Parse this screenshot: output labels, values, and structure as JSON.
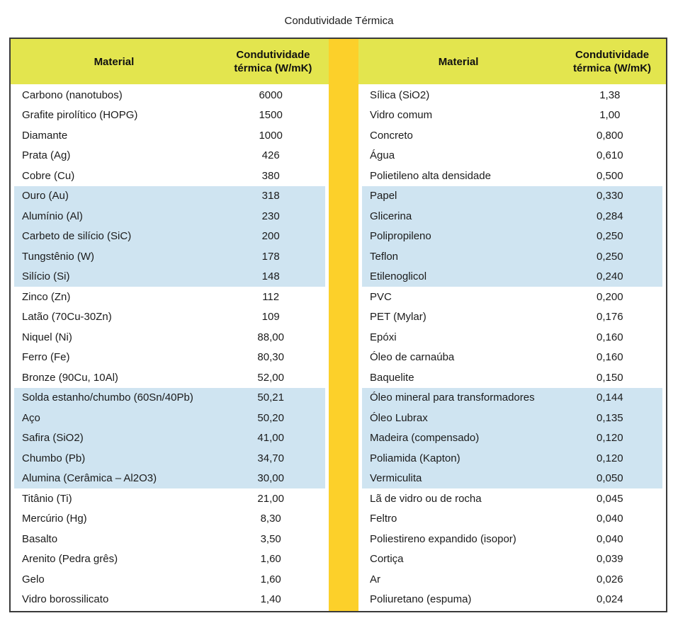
{
  "title": "Condutividade Térmica",
  "colors": {
    "header_bg": "#e3e54e",
    "divider": "#fcd02a",
    "highlight": "#cfe4f1",
    "border": "#3a3a3a"
  },
  "tables": [
    {
      "headers": {
        "material": "Material",
        "conductivity": "Condutividade térmica (W/mK)"
      },
      "rows": [
        {
          "material": "Carbono (nanotubos)",
          "value": "6000",
          "highlight": false
        },
        {
          "material": "Grafite pirolítico (HOPG)",
          "value": "1500",
          "highlight": false
        },
        {
          "material": "Diamante",
          "value": "1000",
          "highlight": false
        },
        {
          "material": "Prata (Ag)",
          "value": "426",
          "highlight": false
        },
        {
          "material": "Cobre (Cu)",
          "value": "380",
          "highlight": false
        },
        {
          "material": "Ouro (Au)",
          "value": "318",
          "highlight": true
        },
        {
          "material": "Alumínio (Al)",
          "value": "230",
          "highlight": true
        },
        {
          "material": "Carbeto de silício (SiC)",
          "value": "200",
          "highlight": true
        },
        {
          "material": "Tungstênio (W)",
          "value": "178",
          "highlight": true
        },
        {
          "material": "Silício (Si)",
          "value": "148",
          "highlight": true
        },
        {
          "material": "Zinco (Zn)",
          "value": "112",
          "highlight": false
        },
        {
          "material": "Latão (70Cu-30Zn)",
          "value": "109",
          "highlight": false
        },
        {
          "material": "Niquel (Ni)",
          "value": "88,00",
          "highlight": false
        },
        {
          "material": "Ferro (Fe)",
          "value": "80,30",
          "highlight": false
        },
        {
          "material": "Bronze (90Cu, 10Al)",
          "value": "52,00",
          "highlight": false
        },
        {
          "material": "Solda estanho/chumbo (60Sn/40Pb)",
          "value": "50,21",
          "highlight": true
        },
        {
          "material": "Aço",
          "value": "50,20",
          "highlight": true
        },
        {
          "material": "Safira (SiO2)",
          "value": "41,00",
          "highlight": true
        },
        {
          "material": "Chumbo (Pb)",
          "value": "34,70",
          "highlight": true
        },
        {
          "material": "Alumina (Cerâmica – Al2O3)",
          "value": "30,00",
          "highlight": true
        },
        {
          "material": "Titânio (Ti)",
          "value": "21,00",
          "highlight": false
        },
        {
          "material": "Mercúrio (Hg)",
          "value": "8,30",
          "highlight": false
        },
        {
          "material": "Basalto",
          "value": "3,50",
          "highlight": false
        },
        {
          "material": "Arenito (Pedra grês)",
          "value": "1,60",
          "highlight": false
        },
        {
          "material": "Gelo",
          "value": "1,60",
          "highlight": false
        },
        {
          "material": "Vidro borossilicato",
          "value": "1,40",
          "highlight": false
        }
      ]
    },
    {
      "headers": {
        "material": "Material",
        "conductivity": "Condutividade térmica (W/mK)"
      },
      "rows": [
        {
          "material": "Sílica (SiO2)",
          "value": "1,38",
          "highlight": false
        },
        {
          "material": "Vidro comum",
          "value": "1,00",
          "highlight": false
        },
        {
          "material": "Concreto",
          "value": "0,800",
          "highlight": false
        },
        {
          "material": "Água",
          "value": "0,610",
          "highlight": false
        },
        {
          "material": "Polietileno alta densidade",
          "value": "0,500",
          "highlight": false
        },
        {
          "material": "Papel",
          "value": "0,330",
          "highlight": true
        },
        {
          "material": "Glicerina",
          "value": "0,284",
          "highlight": true
        },
        {
          "material": "Polipropileno",
          "value": "0,250",
          "highlight": true
        },
        {
          "material": "Teflon",
          "value": "0,250",
          "highlight": true
        },
        {
          "material": "Etilenoglicol",
          "value": "0,240",
          "highlight": true
        },
        {
          "material": "PVC",
          "value": "0,200",
          "highlight": false
        },
        {
          "material": "PET (Mylar)",
          "value": "0,176",
          "highlight": false
        },
        {
          "material": "Epóxi",
          "value": "0,160",
          "highlight": false
        },
        {
          "material": "Óleo de carnaúba",
          "value": "0,160",
          "highlight": false
        },
        {
          "material": "Baquelite",
          "value": "0,150",
          "highlight": false
        },
        {
          "material": "Óleo mineral para transformadores",
          "value": "0,144",
          "highlight": true
        },
        {
          "material": "Óleo Lubrax",
          "value": "0,135",
          "highlight": true
        },
        {
          "material": "Madeira (compensado)",
          "value": "0,120",
          "highlight": true
        },
        {
          "material": "Poliamida (Kapton)",
          "value": "0,120",
          "highlight": true
        },
        {
          "material": "Vermiculita",
          "value": "0,050",
          "highlight": true
        },
        {
          "material": "Lã de vidro ou de rocha",
          "value": "0,045",
          "highlight": false
        },
        {
          "material": "Feltro",
          "value": "0,040",
          "highlight": false
        },
        {
          "material": "Poliestireno expandido (isopor)",
          "value": "0,040",
          "highlight": false
        },
        {
          "material": "Cortiça",
          "value": "0,039",
          "highlight": false
        },
        {
          "material": "Ar",
          "value": "0,026",
          "highlight": false
        },
        {
          "material": "Poliuretano (espuma)",
          "value": "0,024",
          "highlight": false
        }
      ]
    }
  ]
}
